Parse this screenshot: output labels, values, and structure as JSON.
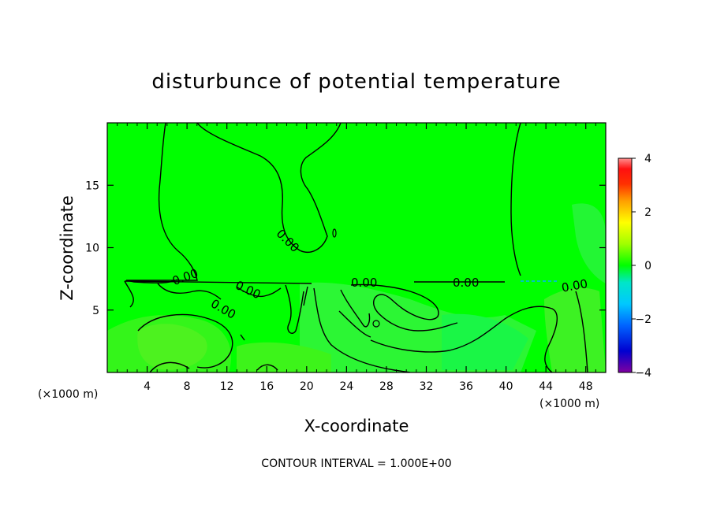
{
  "chart_data": {
    "type": "heatmap",
    "title": "disturbunce of potential temperature",
    "xlabel": "X-coordinate",
    "ylabel": "Z-coordinate",
    "x_unit_left": "(×1000 m)",
    "x_unit_right": "(×1000 m)",
    "x_ticks": [
      4,
      8,
      12,
      16,
      20,
      24,
      28,
      32,
      36,
      40,
      44,
      48
    ],
    "y_ticks": [
      5,
      10,
      15
    ],
    "xlim": [
      0,
      50
    ],
    "ylim": [
      0,
      20
    ],
    "colorbar": {
      "ticks": [
        4,
        2,
        0,
        -2,
        -4
      ],
      "range": [
        -4,
        4
      ],
      "colors": [
        "#7f00a0",
        "#0000d0",
        "#0064ff",
        "#00c8ff",
        "#00e6c8",
        "#00ff00",
        "#a0ff00",
        "#ffff00",
        "#ffa000",
        "#ff3000",
        "#ff1010",
        "#ff9090"
      ]
    },
    "field_color": "#00ff00",
    "contour_labels": [
      "0.00",
      "0.00",
      "0.00",
      "0.00",
      "0.00",
      "0.00",
      "0.00",
      "0.00"
    ],
    "note": "CONTOUR INTERVAL = 1.000E+00"
  }
}
